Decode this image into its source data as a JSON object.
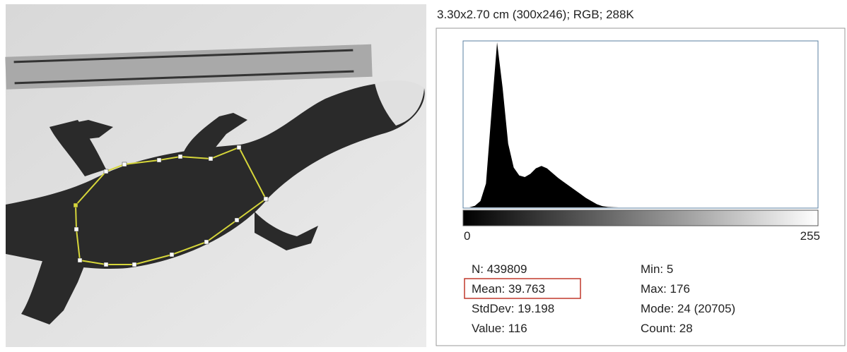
{
  "header": "3.30x2.70 cm (300x246); RGB; 288K",
  "histogram": {
    "xlim": [
      0,
      255
    ],
    "ylim": [
      0,
      20705
    ],
    "xticks": [
      0,
      255
    ],
    "x": [
      0,
      4,
      8,
      12,
      16,
      20,
      24,
      28,
      32,
      36,
      40,
      44,
      48,
      52,
      56,
      60,
      64,
      68,
      72,
      76,
      80,
      84,
      88,
      92,
      96,
      100,
      104,
      108,
      112,
      116,
      120,
      124
    ],
    "values": [
      0,
      0,
      200,
      800,
      3000,
      12000,
      20705,
      15000,
      8000,
      5000,
      4000,
      3800,
      4200,
      4900,
      5200,
      4900,
      4300,
      3700,
      3200,
      2700,
      2200,
      1700,
      1200,
      800,
      400,
      150,
      50,
      20,
      0,
      0,
      0,
      0
    ]
  },
  "stats": {
    "left": [
      "N: 439809",
      "Mean: 39.763",
      "StdDev: 19.198",
      "Value: 116"
    ],
    "right": [
      "Min: 5",
      "Max: 176",
      "Mode: 24 (20705)",
      "Count: 28"
    ]
  }
}
